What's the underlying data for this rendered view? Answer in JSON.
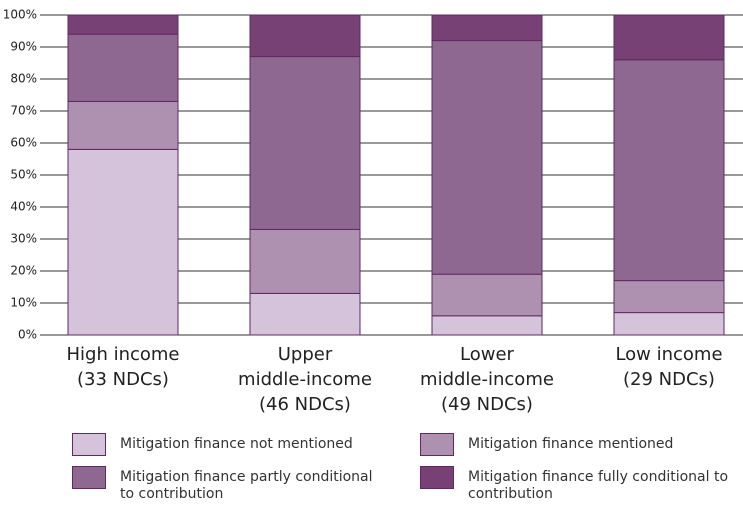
{
  "chart_data": {
    "type": "stacked_bar",
    "categories": [
      [
        "High income",
        "(33 NDCs)"
      ],
      [
        "Upper",
        "middle-income",
        "(46 NDCs)"
      ],
      [
        "Lower",
        "middle-income",
        "(49 NDCs)"
      ],
      [
        "Low income",
        "(29 NDCs)"
      ]
    ],
    "series": [
      {
        "name": "Mitigation finance not mentioned",
        "color": "#d4c3da",
        "values": [
          58,
          13,
          6,
          7
        ]
      },
      {
        "name": "Mitigation finance mentioned",
        "color": "#ae91b1",
        "values": [
          15,
          20,
          13,
          10
        ]
      },
      {
        "name": "Mitigation finance partly conditional to contribution",
        "color": "#8f6891",
        "values": [
          21,
          54,
          73,
          69
        ]
      },
      {
        "name": "Mitigation finance fully conditional to contribution",
        "color": "#774176",
        "values": [
          6,
          13,
          8,
          14
        ]
      }
    ],
    "ylim": [
      0,
      100
    ],
    "yticks": [
      {
        "value": 0,
        "label": "0%"
      },
      {
        "value": 10,
        "label": "10%"
      },
      {
        "value": 20,
        "label": "20%"
      },
      {
        "value": 30,
        "label": "30%"
      },
      {
        "value": 40,
        "label": "40%"
      },
      {
        "value": 50,
        "label": "50%"
      },
      {
        "value": 60,
        "label": "60%"
      },
      {
        "value": 70,
        "label": "70%"
      },
      {
        "value": 80,
        "label": "80%"
      },
      {
        "value": 90,
        "label": "90%"
      },
      {
        "value": 100,
        "label": "100%"
      }
    ],
    "grid": true
  }
}
